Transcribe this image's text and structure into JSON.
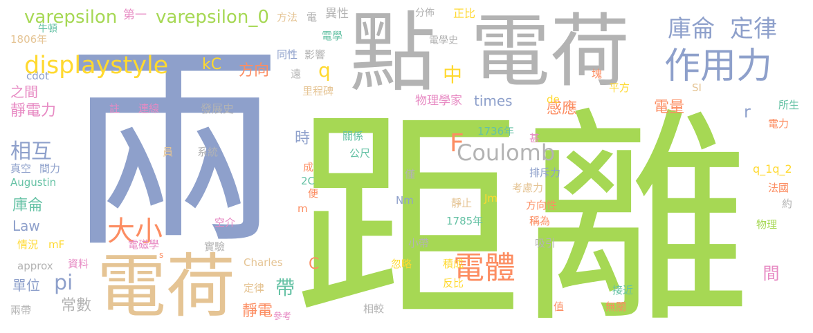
{
  "words": [
    {
      "text": "兩",
      "color": "#8ea0cb",
      "orient": "h"
    },
    {
      "text": "距離",
      "color": "#a6d854",
      "orient": "h"
    },
    {
      "text": "電荷",
      "color": "#b3b3b3",
      "orient": "h"
    },
    {
      "text": "點",
      "color": "#b3b3b3",
      "orient": "h"
    },
    {
      "text": "電荷",
      "color": "#e5c494",
      "orient": "h"
    },
    {
      "text": "作用力",
      "color": "#8ea0cb",
      "orient": "h"
    },
    {
      "text": "庫侖",
      "color": "#8ea0cb",
      "orient": "h"
    },
    {
      "text": "定律",
      "color": "#8ea0cb",
      "orient": "h"
    },
    {
      "text": "displaystyle",
      "color": "#ffd92f",
      "orient": "h"
    },
    {
      "text": "varepsilon",
      "color": "#a6d854",
      "orient": "h"
    },
    {
      "text": "varepsilon_0",
      "color": "#a6d854",
      "orient": "h"
    },
    {
      "text": "第一",
      "color": "#e78ac3",
      "orient": "h"
    },
    {
      "text": "電體",
      "color": "#fc8d62",
      "orient": "h"
    },
    {
      "text": "大小",
      "color": "#fc8d62",
      "orient": "h"
    },
    {
      "text": "Coulomb",
      "color": "#b3b3b3",
      "orient": "h"
    },
    {
      "text": "F",
      "color": "#fc8d62",
      "orient": "h"
    },
    {
      "text": "q",
      "color": "#ffd92f",
      "orient": "h"
    },
    {
      "text": "中",
      "color": "#ffd92f",
      "orient": "h"
    },
    {
      "text": "kC",
      "color": "#ffd92f",
      "orient": "h"
    },
    {
      "text": "方向",
      "color": "#fc8d62",
      "orient": "h"
    },
    {
      "text": "相互",
      "color": "#8ea0cb",
      "orient": "h"
    },
    {
      "text": "靜電力",
      "color": "#e78ac3",
      "orient": "h"
    },
    {
      "text": "之間",
      "color": "#e78ac3",
      "orient": "h"
    },
    {
      "text": "times",
      "color": "#8ea0cb",
      "orient": "h"
    },
    {
      "text": "物理學家",
      "color": "#e78ac3",
      "orient": "h"
    },
    {
      "text": "感應",
      "color": "#fc8d62",
      "orient": "h"
    },
    {
      "text": "電量",
      "color": "#fc8d62",
      "orient": "h"
    },
    {
      "text": "r",
      "color": "#8ea0cb",
      "orient": "h"
    },
    {
      "text": "帶",
      "color": "#66c2a5",
      "orient": "h"
    },
    {
      "text": "pi",
      "color": "#8ea0cb",
      "orient": "h"
    },
    {
      "text": "時",
      "color": "#8ea0cb",
      "orient": "h"
    },
    {
      "text": "庫侖",
      "color": "#66c2a5",
      "orient": "h"
    },
    {
      "text": "Law",
      "color": "#8ea0cb",
      "orient": "h"
    },
    {
      "text": "單位",
      "color": "#8ea0cb",
      "orient": "h"
    },
    {
      "text": "常數",
      "color": "#b3b3b3",
      "orient": "h"
    },
    {
      "text": "靜電",
      "color": "#fc8d62",
      "orient": "h"
    },
    {
      "text": "間",
      "color": "#e78ac3",
      "orient": "v"
    },
    {
      "text": "牛頓",
      "color": "#66c2a5",
      "orient": "h"
    },
    {
      "text": "1806年",
      "color": "#e5c494",
      "orient": "h"
    },
    {
      "text": "方法",
      "color": "#e5c494",
      "orient": "h"
    },
    {
      "text": "電學",
      "color": "#66c2a5",
      "orient": "h"
    },
    {
      "text": "電",
      "color": "#b3b3b3",
      "orient": "h"
    },
    {
      "text": "異性",
      "color": "#b3b3b3",
      "orient": "h"
    },
    {
      "text": "分佈",
      "color": "#b3b3b3",
      "orient": "h"
    },
    {
      "text": "正比",
      "color": "#ffd92f",
      "orient": "h"
    },
    {
      "text": "電學史",
      "color": "#b3b3b3",
      "orient": "h"
    },
    {
      "text": "同性",
      "color": "#8ea0cb",
      "orient": "h"
    },
    {
      "text": "影響",
      "color": "#b3b3b3",
      "orient": "h"
    },
    {
      "text": "遠",
      "color": "#b3b3b3",
      "orient": "h"
    },
    {
      "text": "里程碑",
      "color": "#e5c494",
      "orient": "h"
    },
    {
      "text": "cdot",
      "color": "#8ea0cb",
      "orient": "h"
    },
    {
      "text": "發展史",
      "color": "#b3b3b3",
      "orient": "h"
    },
    {
      "text": "連線",
      "color": "#e78ac3",
      "orient": "h"
    },
    {
      "text": "註",
      "color": "#e78ac3",
      "orient": "h"
    },
    {
      "text": "塊",
      "color": "#fc8d62",
      "orient": "h"
    },
    {
      "text": "平方",
      "color": "#ffd92f",
      "orient": "h"
    },
    {
      "text": "SI",
      "color": "#e5c494",
      "orient": "h"
    },
    {
      "text": "de",
      "color": "#ffd92f",
      "orient": "h"
    },
    {
      "text": "所生",
      "color": "#66c2a5",
      "orient": "h"
    },
    {
      "text": "電力",
      "color": "#fc8d62",
      "orient": "h"
    },
    {
      "text": "1736年",
      "color": "#66c2a5",
      "orient": "h"
    },
    {
      "text": "甚",
      "color": "#e78ac3",
      "orient": "h"
    },
    {
      "text": "關係",
      "color": "#66c2a5",
      "orient": "h"
    },
    {
      "text": "公尺",
      "color": "#66c2a5",
      "orient": "h"
    },
    {
      "text": "系統",
      "color": "#b3b3b3",
      "orient": "h"
    },
    {
      "text": "員",
      "color": "#e5c494",
      "orient": "h"
    },
    {
      "text": "真空",
      "color": "#8ea0cb",
      "orient": "h"
    },
    {
      "text": "間力",
      "color": "#8ea0cb",
      "orient": "h"
    },
    {
      "text": "Augustin",
      "color": "#66c2a5",
      "orient": "h"
    },
    {
      "text": "成",
      "color": "#fc8d62",
      "orient": "h"
    },
    {
      "text": "2C",
      "color": "#66c2a5",
      "orient": "h"
    },
    {
      "text": "便",
      "color": "#fc8d62",
      "orient": "h"
    },
    {
      "text": "m",
      "color": "#fc8d62",
      "orient": "h"
    },
    {
      "text": "僅",
      "color": "#b3b3b3",
      "orient": "h"
    },
    {
      "text": "排斥力",
      "color": "#8ea0cb",
      "orient": "h"
    },
    {
      "text": "考慮力",
      "color": "#e5c494",
      "orient": "h"
    },
    {
      "text": "q_1q_2",
      "color": "#ffd92f",
      "orient": "h"
    },
    {
      "text": "法國",
      "color": "#fc8d62",
      "orient": "h"
    },
    {
      "text": "約",
      "color": "#b3b3b3",
      "orient": "h"
    },
    {
      "text": "Nm",
      "color": "#8ea0cb",
      "orient": "h"
    },
    {
      "text": "靜止",
      "color": "#e5c494",
      "orient": "h"
    },
    {
      "text": "Jm",
      "color": "#ffd92f",
      "orient": "h"
    },
    {
      "text": "方向性",
      "color": "#fc8d62",
      "orient": "h"
    },
    {
      "text": "1785年",
      "color": "#66c2a5",
      "orient": "h"
    },
    {
      "text": "稱為",
      "color": "#fc8d62",
      "orient": "h"
    },
    {
      "text": "物理",
      "color": "#a6d854",
      "orient": "h"
    },
    {
      "text": "空介",
      "color": "#e78ac3",
      "orient": "h"
    },
    {
      "text": "情況",
      "color": "#ffd92f",
      "orient": "h"
    },
    {
      "text": "mF",
      "color": "#ffd92f",
      "orient": "h"
    },
    {
      "text": "電磁學",
      "color": "#e78ac3",
      "orient": "h"
    },
    {
      "text": "實驗",
      "color": "#b3b3b3",
      "orient": "h"
    },
    {
      "text": "小帶",
      "color": "#b3b3b3",
      "orient": "h"
    },
    {
      "text": "吸引",
      "color": "#b3b3b3",
      "orient": "h"
    },
    {
      "text": "s",
      "color": "#fc8d62",
      "orient": "h"
    },
    {
      "text": "approx",
      "color": "#b3b3b3",
      "orient": "h"
    },
    {
      "text": "資料",
      "color": "#e78ac3",
      "orient": "h"
    },
    {
      "text": "Charles",
      "color": "#e5c494",
      "orient": "h"
    },
    {
      "text": "C",
      "color": "#fc8d62",
      "orient": "h"
    },
    {
      "text": "忽略",
      "color": "#ffd92f",
      "orient": "h"
    },
    {
      "text": "積成",
      "color": "#ffd92f",
      "orient": "h"
    },
    {
      "text": "反比",
      "color": "#ffd92f",
      "orient": "h"
    },
    {
      "text": "接近",
      "color": "#66c2a5",
      "orient": "h"
    },
    {
      "text": "無關",
      "color": "#fc8d62",
      "orient": "h"
    },
    {
      "text": "值",
      "color": "#fc8d62",
      "orient": "h"
    },
    {
      "text": "定律",
      "color": "#e5c494",
      "orient": "h"
    },
    {
      "text": "參考",
      "color": "#e78ac3",
      "orient": "h"
    },
    {
      "text": "兩帶",
      "color": "#b3b3b3",
      "orient": "h"
    },
    {
      "text": "相較",
      "color": "#b3b3b3",
      "orient": "h"
    }
  ]
}
